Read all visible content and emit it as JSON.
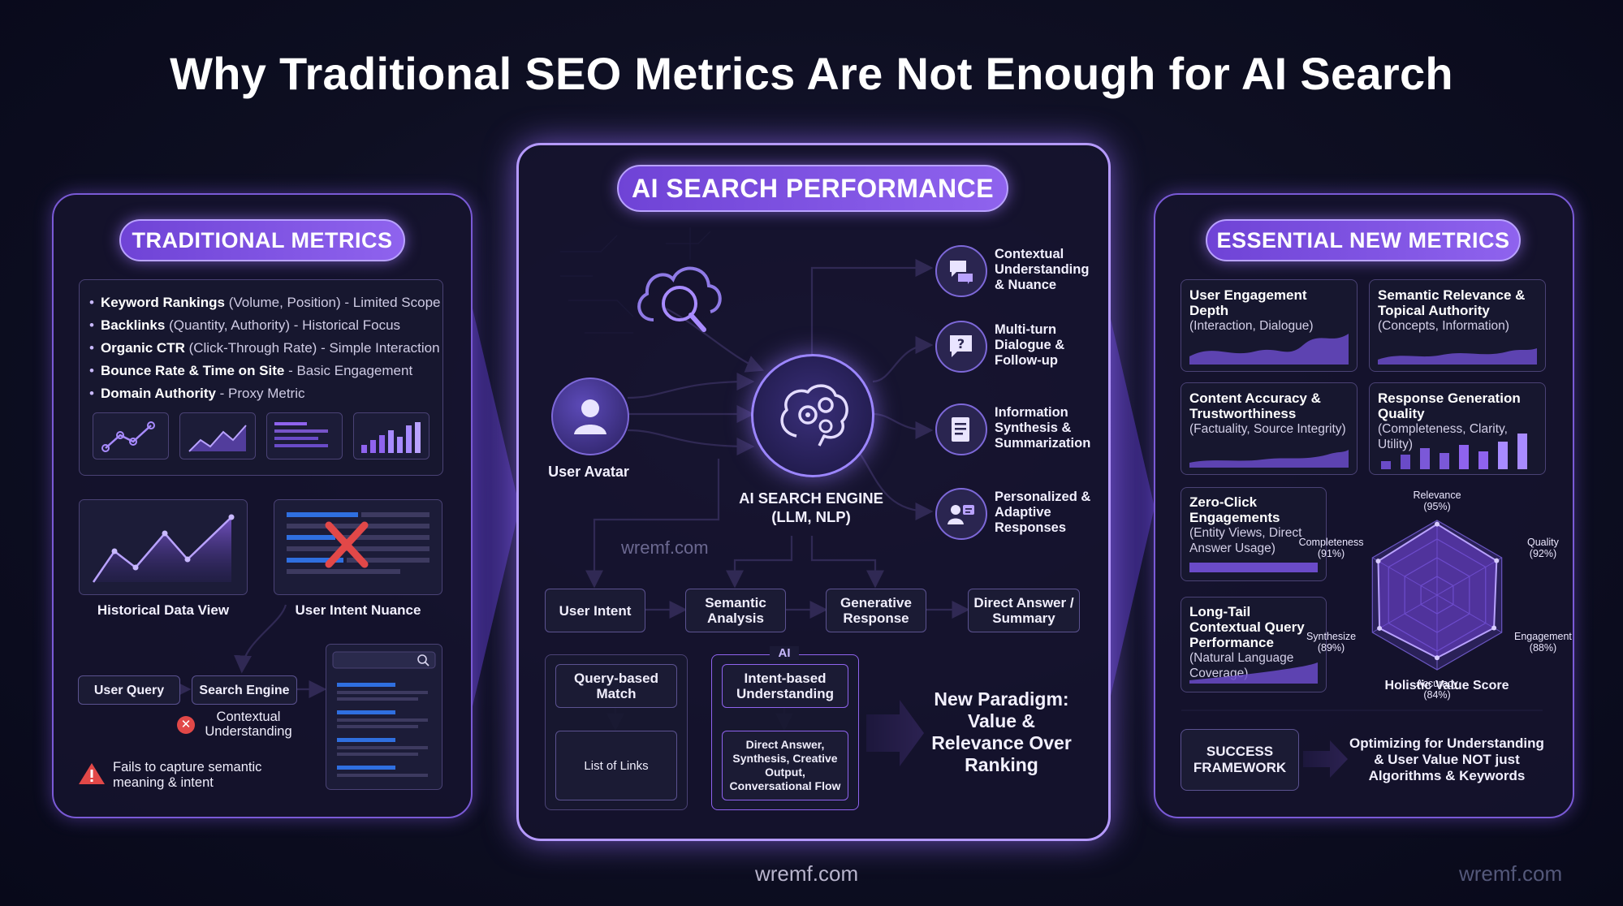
{
  "title": "Why Traditional SEO Metrics Are Not Enough for AI Search",
  "watermarks": {
    "center_inner": "wremf.com",
    "bottom_center": "wremf.com",
    "bottom_right": "wremf.com"
  },
  "left": {
    "header": "TRADITIONAL METRICS",
    "bullets": [
      {
        "bold": "Keyword Rankings",
        "rest": " (Volume, Position) - Limited Scope"
      },
      {
        "bold": "Backlinks",
        "rest": " (Quantity, Authority) - Historical Focus"
      },
      {
        "bold": "Organic CTR",
        "rest": " (Click-Through Rate) - Simple Interaction"
      },
      {
        "bold": "Bounce Rate & Time on Site",
        "rest": " - Basic Engagement"
      },
      {
        "bold": "Domain Authority",
        "rest": " - Proxy Metric"
      }
    ],
    "historical_label": "Historical Data View",
    "intent_label": "User Intent Nuance",
    "flow": {
      "user_query": "User Query",
      "search_engine": "Search Engine"
    },
    "contextual": "Contextual Understanding",
    "warning": "Fails to capture semantic meaning & intent"
  },
  "center": {
    "header": "AI SEARCH PERFORMANCE",
    "user_avatar": "User Avatar",
    "engine": "AI SEARCH ENGINE (LLM, NLP)",
    "outputs": [
      {
        "label": "Contextual Understanding & Nuance",
        "icon": "chat-bubbles-icon"
      },
      {
        "label": "Multi-turn Dialogue & Follow-up",
        "icon": "question-bubble-icon"
      },
      {
        "label": "Information Synthesis & Summarization",
        "icon": "document-icon"
      },
      {
        "label": "Personalized & Adaptive Responses",
        "icon": "user-card-icon"
      }
    ],
    "flow": [
      "User Intent",
      "Semantic Analysis",
      "Generative Response",
      "Direct Answer / Summary"
    ],
    "old_box": {
      "top": "Query-based Match",
      "bottom": "List of Links"
    },
    "ai_box": {
      "tag": "AI",
      "top": "Intent-based Understanding",
      "bottom": "Direct Answer, Synthesis, Creative Output, Conversational Flow"
    },
    "paradigm": "New Paradigm: Value & Relevance Over Ranking"
  },
  "right": {
    "header": "ESSENTIAL NEW METRICS",
    "metrics": [
      {
        "title": "User Engagement Depth",
        "sub": "(Interaction, Dialogue)"
      },
      {
        "title": "Semantic Relevance & Topical Authority",
        "sub": "(Concepts, Information)"
      },
      {
        "title": "Content Accuracy & Trustworthiness",
        "sub": "(Factuality, Source Integrity)"
      },
      {
        "title": "Response Generation Quality",
        "sub": "(Completeness, Clarity, Utility)"
      },
      {
        "title": "Zero-Click Engagements",
        "sub": "(Entity Views, Direct Answer Usage)"
      },
      {
        "title": "Long-Tail Contextual Query Performance",
        "sub": "(Natural Language Coverage)"
      }
    ],
    "radar": {
      "title": "Holistic Value Score",
      "axes": [
        {
          "name": "Relevance",
          "value": "(95%)",
          "pct": 95
        },
        {
          "name": "Quality",
          "value": "(92%)",
          "pct": 92
        },
        {
          "name": "Engagement",
          "value": "(88%)",
          "pct": 88
        },
        {
          "name": "Accuracy",
          "value": "(84%)",
          "pct": 84
        },
        {
          "name": "Synthesize",
          "value": "(89%)",
          "pct": 89
        },
        {
          "name": "Completeness",
          "value": "(91%)",
          "pct": 91
        }
      ]
    },
    "success": "SUCCESS FRAMEWORK",
    "optimizing": "Optimizing for Understanding & User Value NOT just Algorithms & Keywords"
  },
  "colors": {
    "accent": "#8f63ee",
    "accent_light": "#b9a2ff",
    "warning": "#e24848",
    "bar_blue": "#2f6fe0"
  }
}
